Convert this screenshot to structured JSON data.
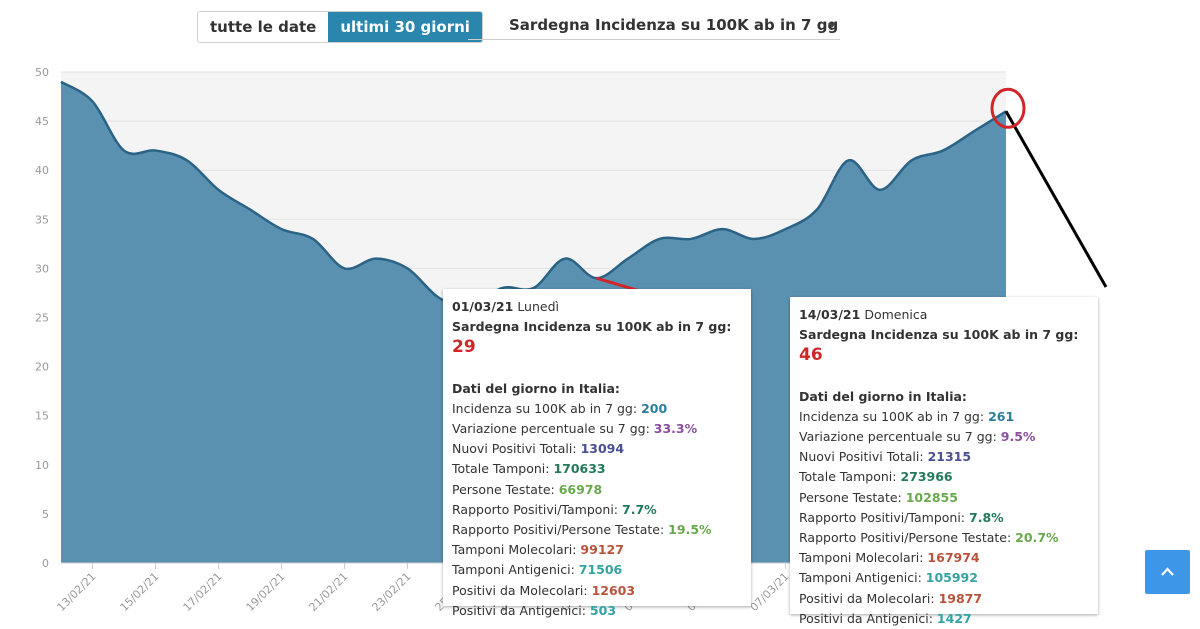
{
  "controls": {
    "range_all": "tutte le date",
    "range_30": "ultimi 30 giorni",
    "metric_select": "Sardegna Incidenza su 100K ab in 7 gg"
  },
  "colors": {
    "area": "#5b91b0",
    "line": "#2a6385",
    "plot_bg": "#f4f4f4",
    "annotation_red": "#d0262a",
    "annotation_black": "#000000"
  },
  "chart_data": {
    "type": "area",
    "ylim": [
      0,
      50
    ],
    "y_ticks": [
      0,
      5,
      10,
      15,
      20,
      25,
      30,
      35,
      40,
      45,
      50
    ],
    "x_tick_labels": [
      "13/02/21",
      "15/02/21",
      "17/02/21",
      "19/02/21",
      "21/02/21",
      "23/02/21",
      "25/02/21",
      "27/02/21",
      "01/03/21",
      "03/03/21",
      "05/03/21",
      "07/03/21"
    ],
    "x_tick_dates": [
      "2021-02-13",
      "2021-02-15",
      "2021-02-17",
      "2021-02-19",
      "2021-02-21",
      "2021-02-23",
      "2021-02-25",
      "2021-02-27",
      "2021-03-01",
      "2021-03-03",
      "2021-03-05",
      "2021-03-07"
    ],
    "x": [
      "2021-02-12",
      "2021-02-13",
      "2021-02-14",
      "2021-02-15",
      "2021-02-16",
      "2021-02-17",
      "2021-02-18",
      "2021-02-19",
      "2021-02-20",
      "2021-02-21",
      "2021-02-22",
      "2021-02-23",
      "2021-02-24",
      "2021-02-25",
      "2021-02-26",
      "2021-02-27",
      "2021-02-28",
      "2021-03-01",
      "2021-03-02",
      "2021-03-03",
      "2021-03-04",
      "2021-03-05",
      "2021-03-06",
      "2021-03-07",
      "2021-03-08",
      "2021-03-09",
      "2021-03-10",
      "2021-03-11",
      "2021-03-12",
      "2021-03-13",
      "2021-03-14"
    ],
    "values": [
      49,
      47,
      42,
      42,
      41,
      38,
      36,
      34,
      33,
      30,
      31,
      30,
      27,
      26,
      28,
      28,
      31,
      29,
      31,
      33,
      33,
      34,
      33,
      34,
      36,
      41,
      38,
      41,
      42,
      44,
      46
    ],
    "x_range": [
      "2021-02-12",
      "2021-03-14"
    ]
  },
  "tooltips": [
    {
      "date": "01/03/21",
      "weekday": "Lunedì",
      "metric_label": "Sardegna Incidenza su 100K ab in 7 gg:",
      "metric_value": "29",
      "section": "Dati del giorno in Italia:",
      "rows": [
        {
          "label": "Incidenza su 100K ab in 7 gg:",
          "value": "200"
        },
        {
          "label": "Variazione percentuale su 7 gg:",
          "value": "33.3%"
        },
        {
          "label": "Nuovi Positivi Totali:",
          "value": "13094"
        },
        {
          "label": "Totale Tamponi:",
          "value": "170633"
        },
        {
          "label": "Persone Testate:",
          "value": "66978"
        },
        {
          "label": "Rapporto Positivi/Tamponi:",
          "value": "7.7%"
        },
        {
          "label": "Rapporto Positivi/Persone Testate:",
          "value": "19.5%"
        },
        {
          "label": "Tamponi Molecolari:",
          "value": "99127"
        },
        {
          "label": "Tamponi Antigenici:",
          "value": "71506"
        },
        {
          "label": "Positivi da Molecolari:",
          "value": "12603"
        },
        {
          "label": "Positivi da Antigenici:",
          "value": "503"
        }
      ]
    },
    {
      "date": "14/03/21",
      "weekday": "Domenica",
      "metric_label": "Sardegna Incidenza su 100K ab in 7 gg:",
      "metric_value": "46",
      "section": "Dati del giorno in Italia:",
      "rows": [
        {
          "label": "Incidenza su 100K ab in 7 gg:",
          "value": "261"
        },
        {
          "label": "Variazione percentuale su 7 gg:",
          "value": "9.5%"
        },
        {
          "label": "Nuovi Positivi Totali:",
          "value": "21315"
        },
        {
          "label": "Totale Tamponi:",
          "value": "273966"
        },
        {
          "label": "Persone Testate:",
          "value": "102855"
        },
        {
          "label": "Rapporto Positivi/Tamponi:",
          "value": "7.8%"
        },
        {
          "label": "Rapporto Positivi/Persone Testate:",
          "value": "20.7%"
        },
        {
          "label": "Tamponi Molecolari:",
          "value": "167974"
        },
        {
          "label": "Tamponi Antigenici:",
          "value": "105992"
        },
        {
          "label": "Positivi da Molecolari:",
          "value": "19877"
        },
        {
          "label": "Positivi da Antigenici:",
          "value": "1427"
        }
      ]
    }
  ]
}
